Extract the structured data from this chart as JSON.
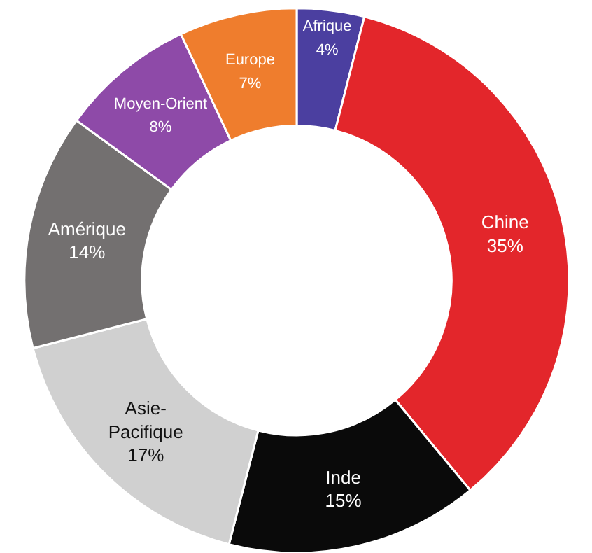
{
  "chart_data": {
    "type": "donut",
    "categories": [
      "Afrique",
      "Chine",
      "Inde",
      "Asie-Pacifique",
      "Amérique",
      "Moyen-Orient",
      "Europe"
    ],
    "values": [
      4,
      35,
      15,
      17,
      14,
      8,
      7
    ],
    "value_labels": [
      "4%",
      "35%",
      "15%",
      "17%",
      "14%",
      "8%",
      "7%"
    ],
    "colors": [
      "#4b3fa0",
      "#e3262b",
      "#0a0a0a",
      "#d0d0d0",
      "#737070",
      "#8e4aa8",
      "#ef7d2d"
    ],
    "legend": false
  }
}
